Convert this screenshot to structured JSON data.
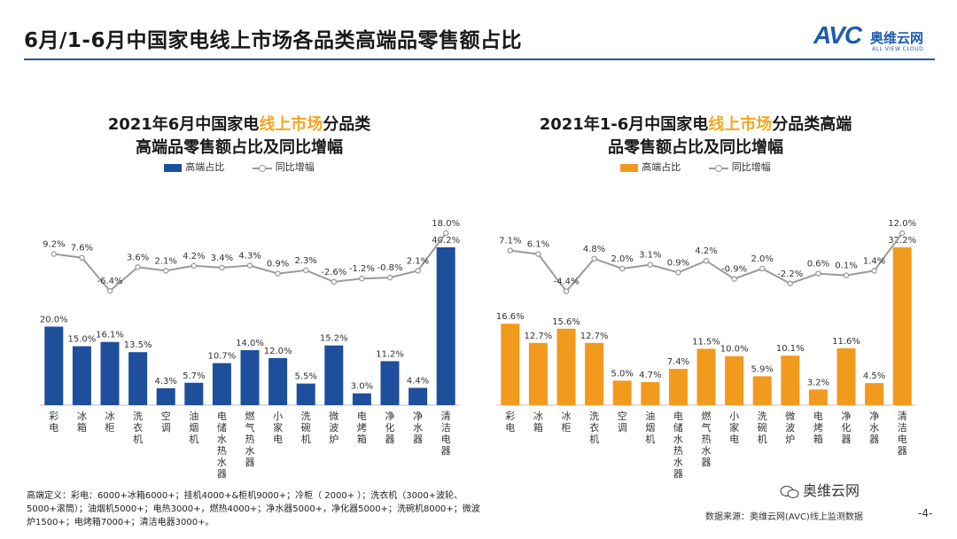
{
  "header": {
    "title": "6月/1-6月中国家电线上市场各品类高端品零售额占比",
    "logo_mark": "AVC",
    "logo_cn": "奥维云网",
    "logo_en": "ALL VIEW CLOUD"
  },
  "colors": {
    "left_bar": "#1d4f9c",
    "right_bar": "#f29a1e",
    "line": "#9b9b9b",
    "accent": "#f5a623"
  },
  "chart_data": [
    {
      "type": "bar",
      "title_pre": "2021年6月中国家电",
      "title_hl": "线上市场",
      "title_post": "分品类",
      "title_line2": "高端品零售额占比及同比增幅",
      "legend_bar": "高端占比",
      "legend_line": "同比增幅",
      "categories": [
        "彩电",
        "冰箱",
        "冰柜",
        "洗衣机",
        "空调",
        "油烟机",
        "电储水热水器",
        "燃气热水器",
        "小家电",
        "洗碗机",
        "微波炉",
        "电烤箱",
        "净化器",
        "净水器",
        "清洁电器"
      ],
      "series": [
        {
          "name": "高端占比",
          "kind": "bar",
          "values": [
            20.0,
            15.0,
            16.1,
            13.5,
            4.3,
            5.7,
            10.7,
            14.0,
            12.0,
            5.5,
            15.2,
            3.0,
            11.2,
            4.4,
            40.2
          ]
        },
        {
          "name": "同比增幅",
          "kind": "line",
          "values": [
            9.2,
            7.6,
            -6.4,
            3.6,
            2.1,
            4.2,
            3.4,
            4.3,
            0.9,
            2.3,
            -2.6,
            -1.2,
            -0.8,
            2.1,
            18.0
          ]
        }
      ],
      "unit": "%"
    },
    {
      "type": "bar",
      "title_pre": "2021年1-6月中国家电",
      "title_hl": "线上市场",
      "title_post": "分品类高端",
      "title_line2": "品零售额占比及同比增幅",
      "legend_bar": "高端占比",
      "legend_line": "同比增幅",
      "categories": [
        "彩电",
        "冰箱",
        "冰柜",
        "洗衣机",
        "空调",
        "油烟机",
        "电储水热水器",
        "燃气热水器",
        "小家电",
        "洗碗机",
        "微波炉",
        "电烤箱",
        "净化器",
        "净水器",
        "清洁电器"
      ],
      "series": [
        {
          "name": "高端占比",
          "kind": "bar",
          "values": [
            16.6,
            12.7,
            15.6,
            12.7,
            5.0,
            4.7,
            7.4,
            11.5,
            10.0,
            5.9,
            10.1,
            3.2,
            11.6,
            4.5,
            32.2
          ]
        },
        {
          "name": "同比增幅",
          "kind": "line",
          "values": [
            7.1,
            6.1,
            -4.4,
            4.8,
            2.0,
            3.1,
            0.9,
            4.2,
            -0.9,
            2.0,
            -2.2,
            0.6,
            0.1,
            1.4,
            12.0
          ]
        }
      ],
      "unit": "%"
    }
  ],
  "footnote": "高端定义：彩电：6000+冰箱6000+；挂机4000+&柜机9000+；冷柜（ 2000+ ）；洗衣机（3000+波轮、5000+滚筒）；油烟机5000+；电热3000+，燃热4000+；净水器5000+，净化器5000+；洗碗机8000+；微波炉1500+；电烤箱7000+；清洁电器3000+。",
  "source": "数据来源：奥维云网(AVC)线上监测数据",
  "page_number": "-4-",
  "wechat_label": "奥维云网"
}
